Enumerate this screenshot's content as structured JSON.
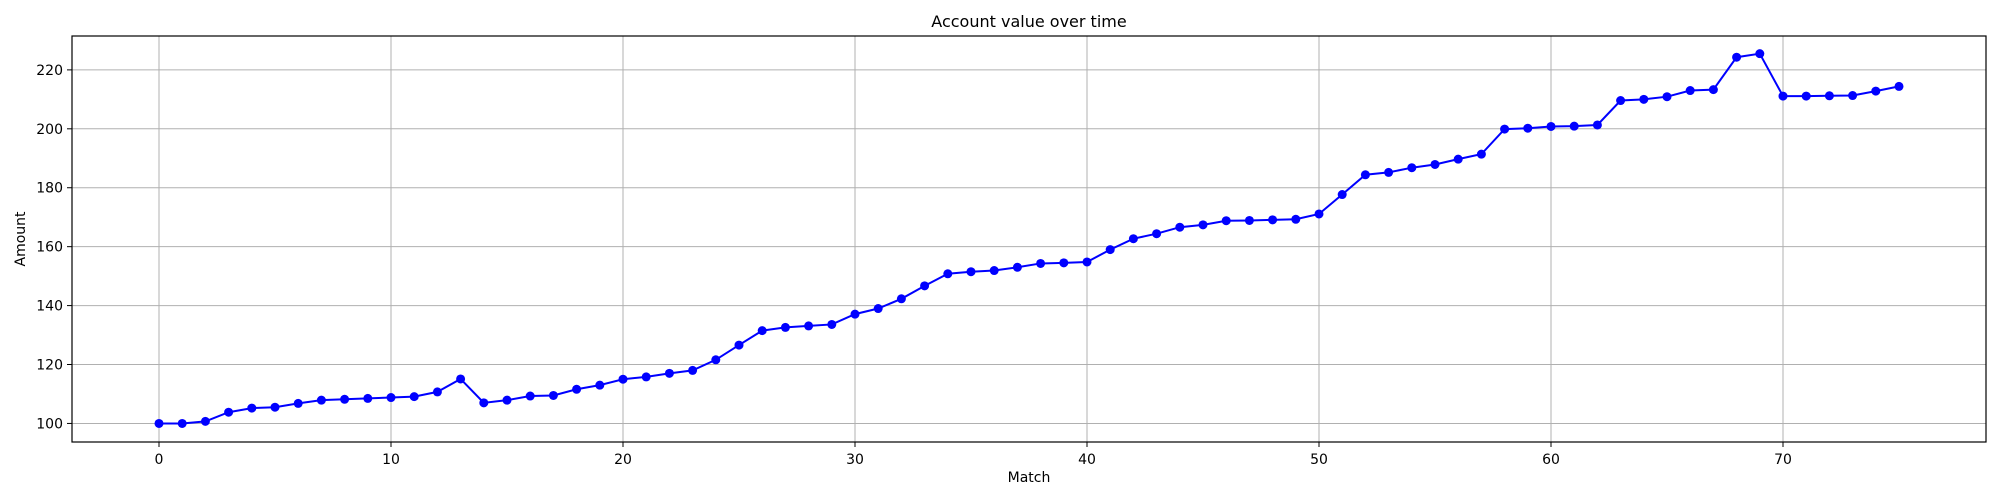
{
  "chart_data": {
    "type": "line",
    "title": "Account value over time",
    "xlabel": "Match",
    "ylabel": "Amount",
    "xlim": [
      -3.75,
      78.75
    ],
    "ylim": [
      93.7,
      231.5
    ],
    "xticks": [
      0,
      10,
      20,
      30,
      40,
      50,
      60,
      70
    ],
    "yticks": [
      100,
      120,
      140,
      160,
      180,
      200,
      220
    ],
    "grid": true,
    "series": [
      {
        "color": "#0000ff",
        "marker": "circle",
        "x": [
          0,
          1,
          2,
          3,
          4,
          5,
          6,
          7,
          8,
          9,
          10,
          11,
          12,
          13,
          14,
          15,
          16,
          17,
          18,
          19,
          20,
          21,
          22,
          23,
          24,
          25,
          26,
          27,
          28,
          29,
          30,
          31,
          32,
          33,
          34,
          35,
          36,
          37,
          38,
          39,
          40,
          41,
          42,
          43,
          44,
          45,
          46,
          47,
          48,
          49,
          50,
          51,
          52,
          53,
          54,
          55,
          56,
          57,
          58,
          59,
          60,
          61,
          62,
          63,
          64,
          65,
          66,
          67,
          68,
          69,
          70,
          71,
          72,
          73,
          74,
          75
        ],
        "y": [
          100,
          100,
          100.7,
          103.8,
          105.2,
          105.5,
          106.8,
          107.9,
          108.2,
          108.5,
          108.8,
          109.1,
          110.7,
          115.1,
          107,
          107.9,
          109.3,
          109.5,
          111.6,
          113,
          115,
          115.8,
          117,
          118,
          121.6,
          126.6,
          131.5,
          132.6,
          133.1,
          133.6,
          137.1,
          139,
          142.3,
          146.7,
          150.8,
          151.5,
          151.9,
          153,
          154.3,
          154.5,
          154.8,
          159,
          162.7,
          164.4,
          166.6,
          167.4,
          168.8,
          168.9,
          169.1,
          169.3,
          171.1,
          177.7,
          184.4,
          185.2,
          186.8,
          187.9,
          189.7,
          191.4,
          199.9,
          200.2,
          200.8,
          200.9,
          201.3,
          209.6,
          210,
          210.9,
          213,
          213.3,
          224.3,
          225.5,
          211.1,
          211.1,
          211.2,
          211.3,
          212.8,
          214.4
        ]
      }
    ]
  }
}
